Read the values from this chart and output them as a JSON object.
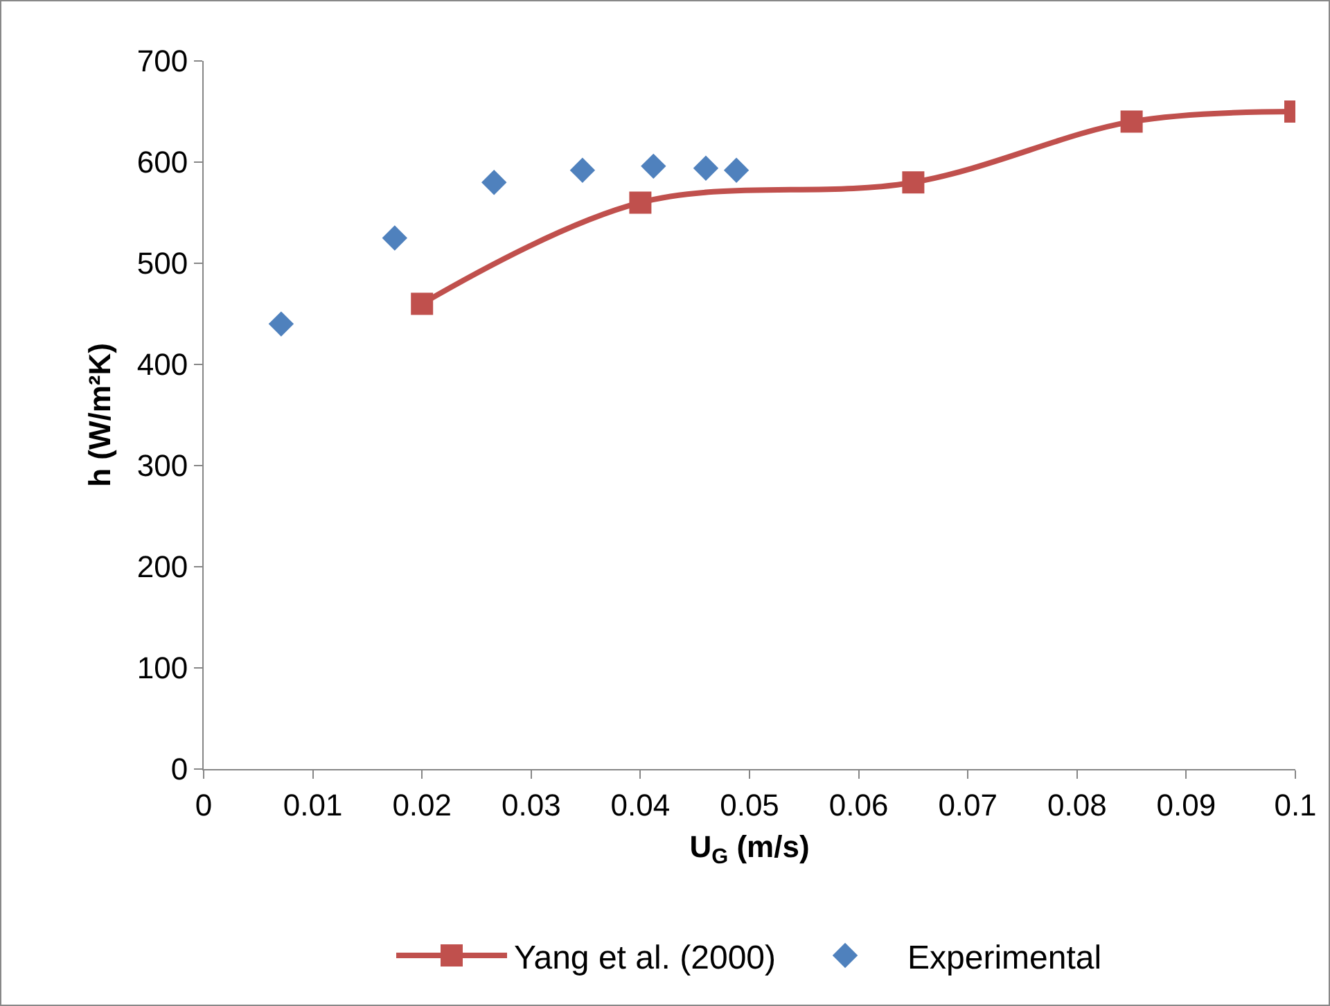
{
  "chart_data": {
    "type": "scatter",
    "xlabel": "U$_{G}$ (m/s)",
    "ylabel": "h (W/m²K)",
    "xlim": [
      0,
      0.1
    ],
    "xticks": [
      0,
      0.01,
      0.02,
      0.03,
      0.04,
      0.05,
      0.06,
      0.07,
      0.08,
      0.09,
      0.1
    ],
    "ylim": [
      0,
      700
    ],
    "yticks": [
      0,
      100,
      200,
      300,
      400,
      500,
      600,
      700
    ],
    "grid": false,
    "legend": "bottom",
    "series": [
      {
        "name": "Yang et al. (2000)",
        "type": "line",
        "color": "#c0504d",
        "marker": "square",
        "x": [
          0.02,
          0.04,
          0.065,
          0.085,
          0.1
        ],
        "values": [
          460,
          560,
          580,
          640,
          650
        ]
      },
      {
        "name": "Experimental",
        "color": "#4f81bd",
        "marker": "diamond",
        "x": [
          0.0071,
          0.0175,
          0.0266,
          0.0347,
          0.0412,
          0.046,
          0.0488
        ],
        "values": [
          440,
          525,
          580,
          592,
          596,
          594,
          592
        ]
      }
    ]
  }
}
